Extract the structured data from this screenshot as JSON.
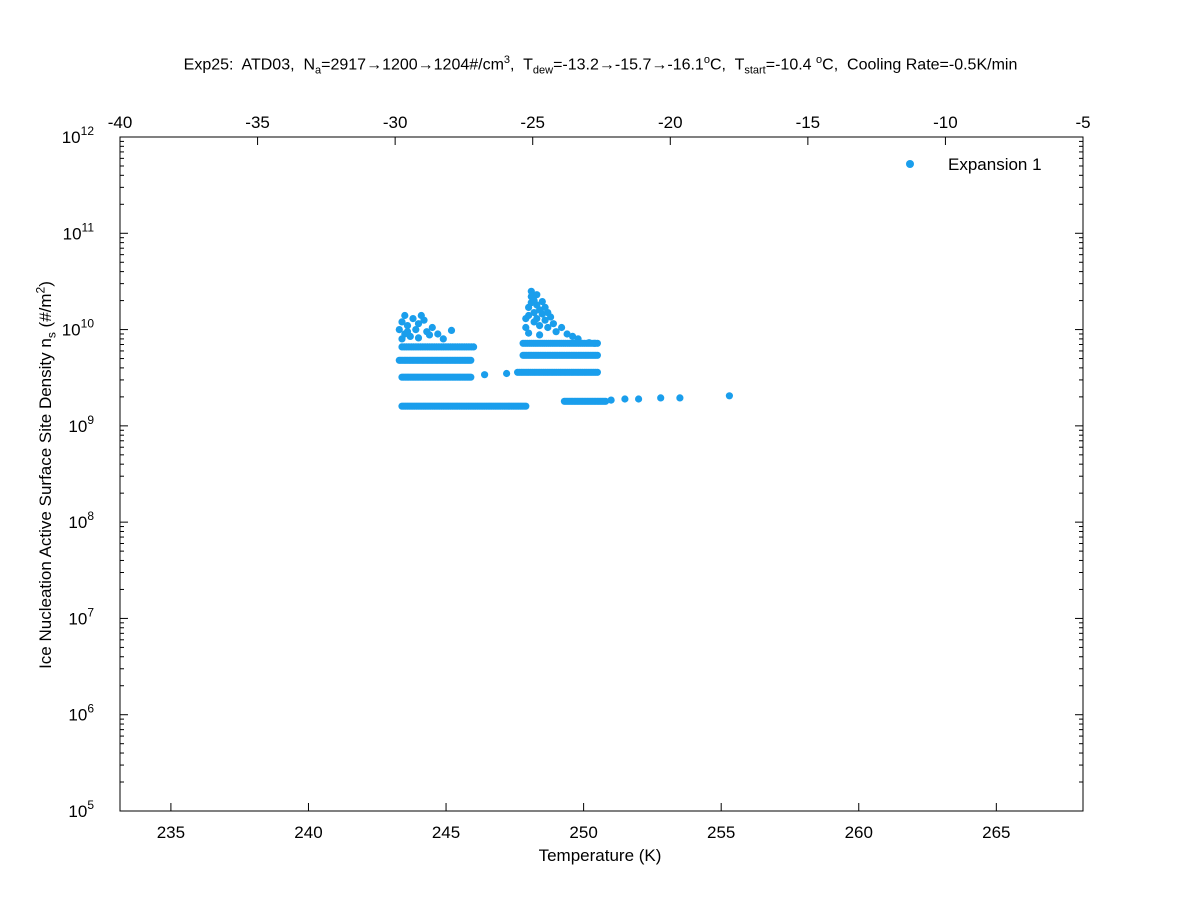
{
  "title": {
    "exp": "Exp25:",
    "instrument": "ATD03,",
    "na_label": "N",
    "na_sub": "a",
    "na_value": "=2917→1200→1204#/cm",
    "na_sup": "3",
    "na_end": ",",
    "tdew_label": "T",
    "tdew_sub": "dew",
    "tdew_value": "=-13.2→-15.7→-16.1",
    "tdew_sup": "o",
    "tdew_unit": "C,",
    "tstart_label": "T",
    "tstart_sub": "start",
    "tstart_value": "=-10.4 ",
    "tstart_sup": "o",
    "tstart_unit": "C,",
    "cooling": "Cooling Rate=-0.5K/min"
  },
  "ylabel": {
    "main": "Ice Nucleation Active Surface Site Density n",
    "sub": "s",
    "unit_open": " (#/m",
    "unit_sup": "2",
    "unit_close": ")"
  },
  "chart_data": {
    "type": "scatter",
    "xlabel": "Temperature (K)",
    "ylabel": "Ice Nucleation Active Surface Site Density n_s (#/m^2)",
    "xlim": [
      233.15,
      268.15
    ],
    "ylim": [
      100000,
      1000000000000
    ],
    "yscale": "log",
    "x_ticks": [
      235,
      240,
      245,
      250,
      255,
      260,
      265
    ],
    "y_ticks": [
      100000,
      1000000,
      10000000,
      100000000,
      1000000000,
      10000000000,
      100000000000,
      1000000000000
    ],
    "y_tick_labels": [
      {
        "base": "10",
        "exp": "5"
      },
      {
        "base": "10",
        "exp": "6"
      },
      {
        "base": "10",
        "exp": "7"
      },
      {
        "base": "10",
        "exp": "8"
      },
      {
        "base": "10",
        "exp": "9"
      },
      {
        "base": "10",
        "exp": "10"
      },
      {
        "base": "10",
        "exp": "11"
      },
      {
        "base": "10",
        "exp": "12"
      }
    ],
    "top_axis": {
      "xlim": [
        -40,
        -5
      ],
      "ticks": [
        -40,
        -35,
        -30,
        -25,
        -20,
        -15,
        -10,
        -5
      ]
    },
    "legend": {
      "position": "top-right"
    },
    "grid": false,
    "series": [
      {
        "name": "Expansion 1",
        "color": "#1a9eec",
        "clusters": [
          {
            "x0": 243.4,
            "x1": 247.9,
            "y": 1600000000,
            "n": 70
          },
          {
            "x0": 249.3,
            "x1": 250.8,
            "y": 1800000000,
            "n": 26
          },
          {
            "x0": 243.4,
            "x1": 245.9,
            "y": 3200000000,
            "n": 42
          },
          {
            "x0": 247.6,
            "x1": 250.5,
            "y": 3600000000,
            "n": 44
          },
          {
            "x0": 243.3,
            "x1": 245.9,
            "y": 4800000000,
            "n": 44
          },
          {
            "x0": 247.8,
            "x1": 250.5,
            "y": 5400000000,
            "n": 44
          },
          {
            "x0": 243.4,
            "x1": 246.0,
            "y": 6600000000,
            "n": 32
          },
          {
            "x0": 247.8,
            "x1": 250.5,
            "y": 7200000000,
            "n": 36
          }
        ],
        "points": [
          [
            243.3,
            10000000000
          ],
          [
            243.4,
            12000000000
          ],
          [
            243.5,
            14000000000
          ],
          [
            243.6,
            11000000000
          ],
          [
            243.5,
            9000000000
          ],
          [
            243.7,
            8500000000
          ],
          [
            243.8,
            13000000000
          ],
          [
            244.0,
            11500000000
          ],
          [
            244.1,
            14000000000
          ],
          [
            244.2,
            12500000000
          ],
          [
            244.3,
            9500000000
          ],
          [
            244.0,
            8200000000
          ],
          [
            244.5,
            10500000000
          ],
          [
            244.7,
            9000000000
          ],
          [
            244.9,
            8000000000
          ],
          [
            245.2,
            9800000000
          ],
          [
            243.4,
            8000000000
          ],
          [
            243.6,
            9500000000
          ],
          [
            243.9,
            10000000000
          ],
          [
            244.4,
            8800000000
          ],
          [
            247.9,
            10500000000
          ],
          [
            247.9,
            13000000000
          ],
          [
            248.0,
            14000000000
          ],
          [
            248.0,
            17000000000
          ],
          [
            248.1,
            19000000000
          ],
          [
            248.1,
            22000000000
          ],
          [
            248.1,
            25000000000
          ],
          [
            248.2,
            12000000000
          ],
          [
            248.2,
            15000000000
          ],
          [
            248.2,
            20000000000
          ],
          [
            248.3,
            23000000000
          ],
          [
            248.3,
            18000000000
          ],
          [
            248.3,
            13000000000
          ],
          [
            248.4,
            16000000000
          ],
          [
            248.4,
            11000000000
          ],
          [
            248.5,
            14500000000
          ],
          [
            248.5,
            19500000000
          ],
          [
            248.6,
            12500000000
          ],
          [
            248.6,
            17000000000
          ],
          [
            248.7,
            15000000000
          ],
          [
            248.7,
            10500000000
          ],
          [
            248.8,
            13500000000
          ],
          [
            248.9,
            11500000000
          ],
          [
            249.0,
            9500000000
          ],
          [
            249.2,
            10500000000
          ],
          [
            249.4,
            9000000000
          ],
          [
            249.6,
            8500000000
          ],
          [
            249.8,
            8000000000
          ],
          [
            248.0,
            9200000000
          ],
          [
            248.4,
            8800000000
          ],
          [
            250.2,
            7300000000
          ],
          [
            250.4,
            7200000000
          ],
          [
            251.0,
            1850000000
          ],
          [
            251.5,
            1900000000
          ],
          [
            252.0,
            1900000000
          ],
          [
            252.8,
            1950000000
          ],
          [
            253.5,
            1950000000
          ],
          [
            255.3,
            2050000000
          ],
          [
            246.4,
            3400000000
          ],
          [
            247.2,
            3500000000
          ]
        ]
      }
    ]
  }
}
